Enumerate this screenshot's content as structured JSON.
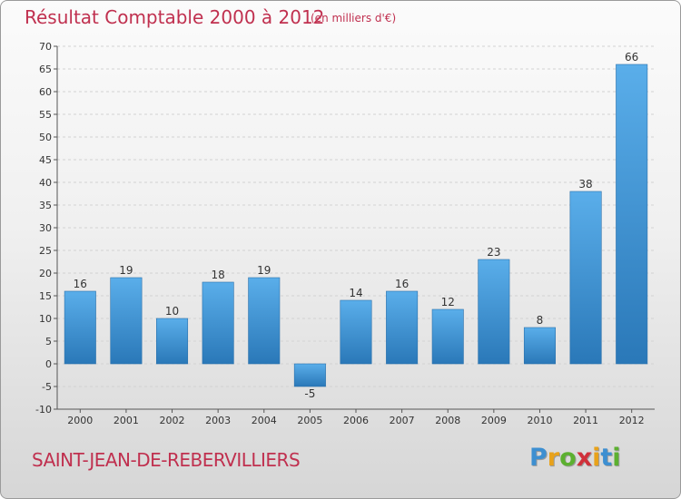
{
  "title": "Résultat Comptable 2000 à 2012",
  "subtitle": "(en milliers d'€)",
  "commune": "SAINT-JEAN-DE-REBERVILLIERS",
  "logo": {
    "letters": [
      "P",
      "r",
      "o",
      "x",
      "i",
      "t",
      "i"
    ],
    "colors": [
      "#3d8fd1",
      "#e8a21b",
      "#5cb030",
      "#d0303a",
      "#e8a21b",
      "#3d8fd1",
      "#5cb030"
    ]
  },
  "colors": {
    "bar_top": "#5aaeea",
    "bar_bottom": "#2a78b8",
    "title": "#c0304f"
  },
  "chart_data": {
    "type": "bar",
    "categories": [
      "2000",
      "2001",
      "2002",
      "2003",
      "2004",
      "2005",
      "2006",
      "2007",
      "2008",
      "2009",
      "2010",
      "2011",
      "2012"
    ],
    "values": [
      16,
      19,
      10,
      18,
      19,
      -5,
      14,
      16,
      12,
      23,
      8,
      38,
      66
    ],
    "ylim": [
      -10,
      70
    ],
    "yticks": [
      -10,
      -5,
      0,
      5,
      10,
      15,
      20,
      25,
      30,
      35,
      40,
      45,
      50,
      55,
      60,
      65,
      70
    ],
    "grid": true,
    "legend": "none"
  }
}
